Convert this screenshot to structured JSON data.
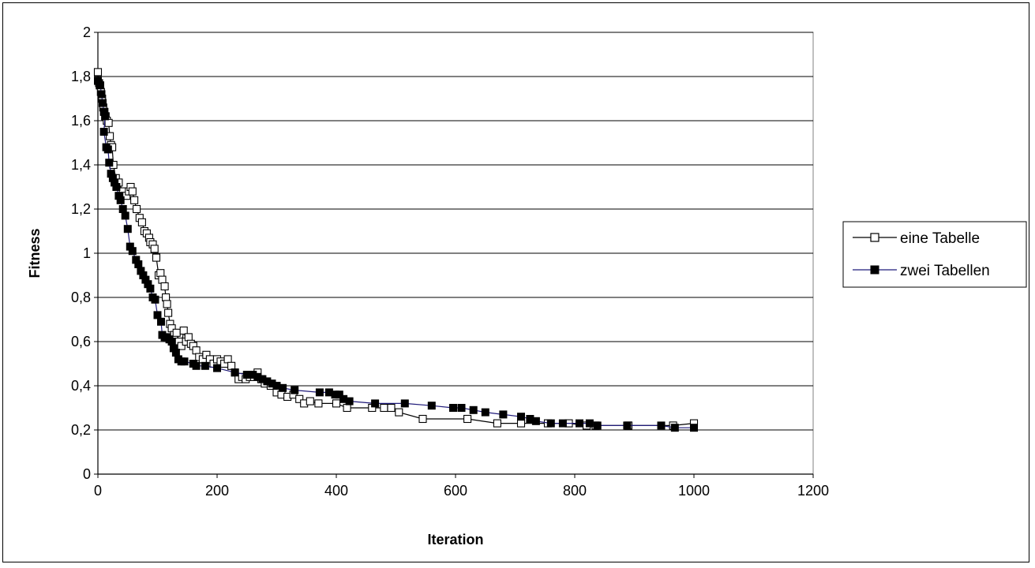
{
  "chart_data": {
    "type": "line",
    "xlabel": "Iteration",
    "ylabel": "Fitness",
    "xlim": [
      0,
      1200
    ],
    "ylim": [
      0,
      2
    ],
    "x_ticks": [
      0,
      200,
      400,
      600,
      800,
      1000,
      1200
    ],
    "y_ticks": [
      0,
      0.2,
      0.4,
      0.6,
      0.8,
      1,
      1.2,
      1.4,
      1.6,
      1.8,
      2
    ],
    "x_tick_labels": [
      "0",
      "200",
      "400",
      "600",
      "800",
      "1000",
      "1200"
    ],
    "y_tick_labels": [
      "0",
      "0,2",
      "0,4",
      "0,6",
      "0,8",
      "1",
      "1,2",
      "1,4",
      "1,6",
      "1,8",
      "2"
    ],
    "grid": "horizontal",
    "legend_position": "right",
    "series": [
      {
        "name": "eine Tabelle",
        "marker": "open-square",
        "line_color": "#000000",
        "points": [
          [
            0,
            1.82
          ],
          [
            3,
            1.76
          ],
          [
            5,
            1.73
          ],
          [
            7,
            1.7
          ],
          [
            9,
            1.66
          ],
          [
            11,
            1.64
          ],
          [
            13,
            1.62
          ],
          [
            15,
            1.6
          ],
          [
            18,
            1.59
          ],
          [
            20,
            1.53
          ],
          [
            22,
            1.49
          ],
          [
            24,
            1.48
          ],
          [
            26,
            1.4
          ],
          [
            30,
            1.34
          ],
          [
            35,
            1.32
          ],
          [
            42,
            1.28
          ],
          [
            48,
            1.26
          ],
          [
            52,
            1.28
          ],
          [
            55,
            1.3
          ],
          [
            58,
            1.28
          ],
          [
            61,
            1.24
          ],
          [
            65,
            1.2
          ],
          [
            70,
            1.16
          ],
          [
            74,
            1.14
          ],
          [
            78,
            1.1
          ],
          [
            82,
            1.09
          ],
          [
            86,
            1.07
          ],
          [
            88,
            1.05
          ],
          [
            92,
            1.04
          ],
          [
            95,
            1.02
          ],
          [
            98,
            0.98
          ],
          [
            102,
            0.9
          ],
          [
            105,
            0.91
          ],
          [
            108,
            0.88
          ],
          [
            112,
            0.85
          ],
          [
            114,
            0.8
          ],
          [
            116,
            0.77
          ],
          [
            118,
            0.73
          ],
          [
            121,
            0.68
          ],
          [
            124,
            0.66
          ],
          [
            128,
            0.63
          ],
          [
            132,
            0.64
          ],
          [
            136,
            0.6
          ],
          [
            140,
            0.58
          ],
          [
            144,
            0.65
          ],
          [
            148,
            0.6
          ],
          [
            152,
            0.62
          ],
          [
            156,
            0.59
          ],
          [
            160,
            0.58
          ],
          [
            165,
            0.56
          ],
          [
            170,
            0.53
          ],
          [
            176,
            0.52
          ],
          [
            182,
            0.54
          ],
          [
            188,
            0.52
          ],
          [
            194,
            0.5
          ],
          [
            200,
            0.52
          ],
          [
            206,
            0.51
          ],
          [
            212,
            0.5
          ],
          [
            218,
            0.52
          ],
          [
            224,
            0.49
          ],
          [
            230,
            0.46
          ],
          [
            236,
            0.43
          ],
          [
            242,
            0.44
          ],
          [
            248,
            0.43
          ],
          [
            255,
            0.44
          ],
          [
            262,
            0.44
          ],
          [
            268,
            0.46
          ],
          [
            274,
            0.43
          ],
          [
            280,
            0.41
          ],
          [
            290,
            0.4
          ],
          [
            300,
            0.37
          ],
          [
            308,
            0.36
          ],
          [
            318,
            0.35
          ],
          [
            328,
            0.36
          ],
          [
            338,
            0.34
          ],
          [
            346,
            0.32
          ],
          [
            356,
            0.33
          ],
          [
            370,
            0.32
          ],
          [
            400,
            0.32
          ],
          [
            418,
            0.3
          ],
          [
            460,
            0.3
          ],
          [
            480,
            0.3
          ],
          [
            492,
            0.3
          ],
          [
            505,
            0.28
          ],
          [
            545,
            0.25
          ],
          [
            620,
            0.25
          ],
          [
            670,
            0.23
          ],
          [
            710,
            0.23
          ],
          [
            755,
            0.23
          ],
          [
            790,
            0.23
          ],
          [
            820,
            0.22
          ],
          [
            835,
            0.22
          ],
          [
            890,
            0.22
          ],
          [
            965,
            0.22
          ],
          [
            1000,
            0.23
          ]
        ]
      },
      {
        "name": "zwei Tabellen",
        "marker": "filled-square",
        "line_color": "#1f1a7a",
        "points": [
          [
            0,
            1.78
          ],
          [
            2,
            1.77
          ],
          [
            4,
            1.76
          ],
          [
            6,
            1.72
          ],
          [
            8,
            1.68
          ],
          [
            10,
            1.64
          ],
          [
            12,
            1.62
          ],
          [
            10,
            1.55
          ],
          [
            14,
            1.48
          ],
          [
            17,
            1.47
          ],
          [
            19,
            1.41
          ],
          [
            22,
            1.36
          ],
          [
            25,
            1.34
          ],
          [
            28,
            1.32
          ],
          [
            31,
            1.3
          ],
          [
            35,
            1.26
          ],
          [
            38,
            1.24
          ],
          [
            42,
            1.2
          ],
          [
            46,
            1.17
          ],
          [
            50,
            1.11
          ],
          [
            54,
            1.03
          ],
          [
            58,
            1.01
          ],
          [
            64,
            0.97
          ],
          [
            68,
            0.95
          ],
          [
            72,
            0.92
          ],
          [
            76,
            0.9
          ],
          [
            80,
            0.88
          ],
          [
            84,
            0.86
          ],
          [
            88,
            0.84
          ],
          [
            92,
            0.8
          ],
          [
            96,
            0.79
          ],
          [
            100,
            0.72
          ],
          [
            106,
            0.69
          ],
          [
            108,
            0.63
          ],
          [
            112,
            0.62
          ],
          [
            116,
            0.62
          ],
          [
            120,
            0.61
          ],
          [
            124,
            0.6
          ],
          [
            127,
            0.57
          ],
          [
            131,
            0.55
          ],
          [
            135,
            0.52
          ],
          [
            140,
            0.51
          ],
          [
            145,
            0.51
          ],
          [
            160,
            0.5
          ],
          [
            165,
            0.49
          ],
          [
            180,
            0.49
          ],
          [
            200,
            0.48
          ],
          [
            230,
            0.46
          ],
          [
            250,
            0.45
          ],
          [
            260,
            0.45
          ],
          [
            268,
            0.44
          ],
          [
            276,
            0.43
          ],
          [
            284,
            0.42
          ],
          [
            292,
            0.41
          ],
          [
            300,
            0.4
          ],
          [
            310,
            0.39
          ],
          [
            330,
            0.38
          ],
          [
            372,
            0.37
          ],
          [
            388,
            0.37
          ],
          [
            398,
            0.36
          ],
          [
            405,
            0.36
          ],
          [
            412,
            0.34
          ],
          [
            422,
            0.33
          ],
          [
            465,
            0.32
          ],
          [
            515,
            0.32
          ],
          [
            560,
            0.31
          ],
          [
            596,
            0.3
          ],
          [
            610,
            0.3
          ],
          [
            630,
            0.29
          ],
          [
            650,
            0.28
          ],
          [
            680,
            0.27
          ],
          [
            710,
            0.26
          ],
          [
            725,
            0.25
          ],
          [
            735,
            0.24
          ],
          [
            760,
            0.23
          ],
          [
            780,
            0.23
          ],
          [
            808,
            0.23
          ],
          [
            825,
            0.23
          ],
          [
            838,
            0.22
          ],
          [
            888,
            0.22
          ],
          [
            945,
            0.22
          ],
          [
            968,
            0.21
          ],
          [
            1000,
            0.21
          ]
        ]
      }
    ]
  }
}
